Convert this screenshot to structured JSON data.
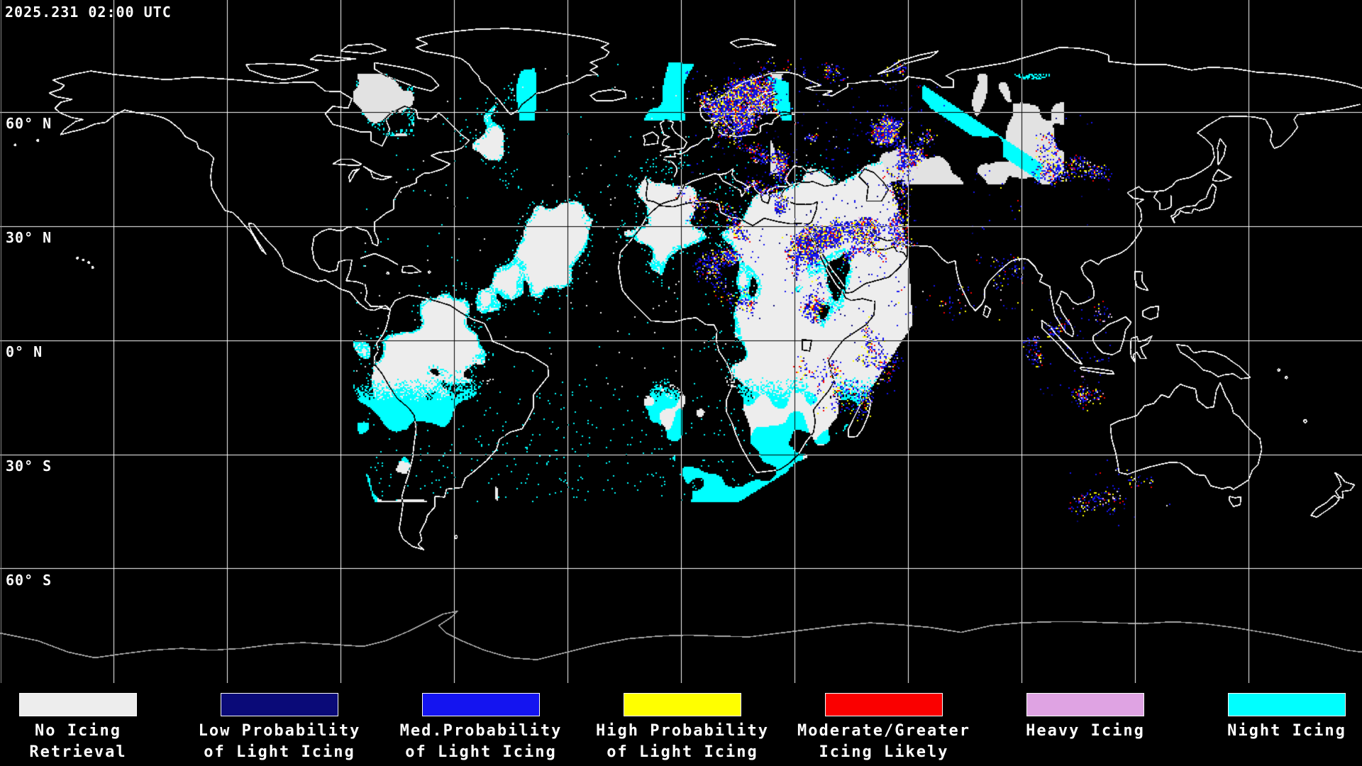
{
  "header": {
    "timestamp": "2025.231 02:00 UTC"
  },
  "map": {
    "lat_labels": [
      {
        "text": "60° N"
      },
      {
        "text": "30° N"
      },
      {
        "text": "0° N"
      },
      {
        "text": "30° S"
      },
      {
        "text": "60° S"
      }
    ],
    "colors": {
      "background": "#000000",
      "coastline": "#ffffff",
      "antarctic_coastline": "#a8a8a8",
      "grid": "#ffffff",
      "map_border": "#909090",
      "no_icing": "#ededed",
      "no_icing_dim": "#e2e2e2",
      "low_prob": "#0a0a78",
      "med_prob": "#1414f0",
      "high_prob": "#ffff00",
      "moderate": "#fa0000",
      "heavy": "#dfa3e3",
      "night": "#00ffff"
    }
  },
  "legend": {
    "items": [
      {
        "id": "no-icing",
        "color": "#ededed",
        "line1": "No Icing",
        "line2": "Retrieval"
      },
      {
        "id": "low-prob",
        "color": "#0a0a78",
        "line1": "Low Probability",
        "line2": "of Light Icing"
      },
      {
        "id": "med-prob",
        "color": "#1414f0",
        "line1": "Med.Probability",
        "line2": "of Light Icing"
      },
      {
        "id": "high-prob",
        "color": "#ffff00",
        "line1": "High Probability",
        "line2": "of Light Icing"
      },
      {
        "id": "moderate-greater",
        "color": "#fa0000",
        "line1": "Moderate/Greater",
        "line2": "Icing Likely"
      },
      {
        "id": "heavy-icing",
        "color": "#dfa3e3",
        "line1": "Heavy Icing",
        "line2": ""
      },
      {
        "id": "night-icing",
        "color": "#00ffff",
        "line1": "Night Icing",
        "line2": ""
      }
    ]
  }
}
